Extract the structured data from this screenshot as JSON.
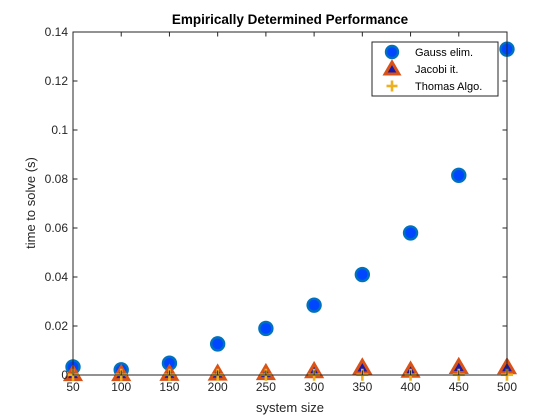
{
  "chart_data": {
    "type": "scatter",
    "title": "Empirically Determined Performance",
    "xlabel": "system size",
    "ylabel": "time to solve (s)",
    "x": [
      50,
      100,
      150,
      200,
      250,
      300,
      350,
      400,
      450,
      500
    ],
    "xlim": [
      50,
      500
    ],
    "ylim": [
      0,
      0.14
    ],
    "xticks": [
      50,
      100,
      150,
      200,
      250,
      300,
      350,
      400,
      450,
      500
    ],
    "yticks": [
      0,
      0.02,
      0.04,
      0.06,
      0.08,
      0.1,
      0.12,
      0.14
    ],
    "xtick_labels": [
      "50",
      "100",
      "150",
      "200",
      "250",
      "300",
      "350",
      "400",
      "450",
      "500"
    ],
    "ytick_labels": [
      "0",
      "0.02",
      "0.04",
      "0.06",
      "0.08",
      "0.1",
      "0.12",
      "0.14"
    ],
    "grid": false,
    "legend_position": "top-right",
    "series": [
      {
        "name": "Gauss elim.",
        "marker": "circle",
        "color": "#0045ff",
        "edge_color": "#0072bd",
        "values": [
          0.0033,
          0.0021,
          0.0048,
          0.0127,
          0.019,
          0.0285,
          0.041,
          0.058,
          0.0815,
          0.133
        ]
      },
      {
        "name": "Jacobi it.",
        "marker": "triangle",
        "color": "#1a1aa8",
        "edge_color": "#d95319",
        "values": [
          0.0003,
          0.0003,
          0.0004,
          0.0005,
          0.0007,
          0.0015,
          0.003,
          0.0017,
          0.0032,
          0.0031
        ]
      },
      {
        "name": "Thomas Algo.",
        "marker": "plus",
        "color": "#edb120",
        "values": [
          0.0001,
          0.0001,
          0.0001,
          0.0001,
          0.0001,
          0.0001,
          0.0001,
          0.0001,
          0.0001,
          0.0001
        ]
      }
    ]
  }
}
